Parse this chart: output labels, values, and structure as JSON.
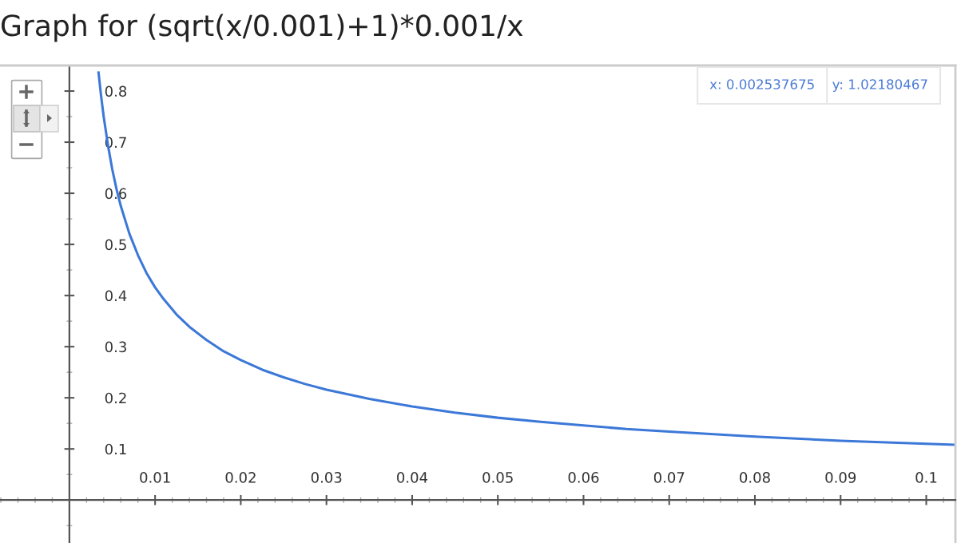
{
  "chart_data": {
    "type": "line",
    "title": "Graph for (sqrt(x/0.001)+1)*0.001/x",
    "x": [
      0.0034,
      0.0037,
      0.004,
      0.0045,
      0.005,
      0.0055,
      0.006,
      0.007,
      0.008,
      0.009,
      0.01,
      0.011,
      0.0125,
      0.014,
      0.016,
      0.018,
      0.02,
      0.0225,
      0.025,
      0.0275,
      0.03,
      0.035,
      0.04,
      0.045,
      0.05,
      0.055,
      0.06,
      0.065,
      0.07,
      0.08,
      0.09,
      0.1,
      0.1034
    ],
    "series": [
      {
        "color": "#3c78d8",
        "values": [
          0.836,
          0.79,
          0.75,
          0.694,
          0.647,
          0.608,
          0.575,
          0.521,
          0.479,
          0.444,
          0.416,
          0.393,
          0.363,
          0.339,
          0.313,
          0.291,
          0.274,
          0.255,
          0.24,
          0.227,
          0.216,
          0.198,
          0.183,
          0.171,
          0.161,
          0.153,
          0.146,
          0.139,
          0.134,
          0.124,
          0.116,
          0.11,
          0.108
        ]
      }
    ],
    "xlim": [
      -0.0081,
      0.1034
    ],
    "ylim": [
      -0.084,
      0.85
    ],
    "xticks": [
      0.01,
      0.02,
      0.03,
      0.04,
      0.05,
      0.06,
      0.07,
      0.08,
      0.09,
      0.1
    ],
    "yticks": [
      0.1,
      0.2,
      0.3,
      0.4,
      0.5,
      0.6,
      0.7,
      0.8
    ],
    "annotations": [
      "x: 0.002537675",
      "y: 1.02180467"
    ],
    "grid": false,
    "legend": false,
    "marker": "none",
    "line_style": "solid"
  }
}
